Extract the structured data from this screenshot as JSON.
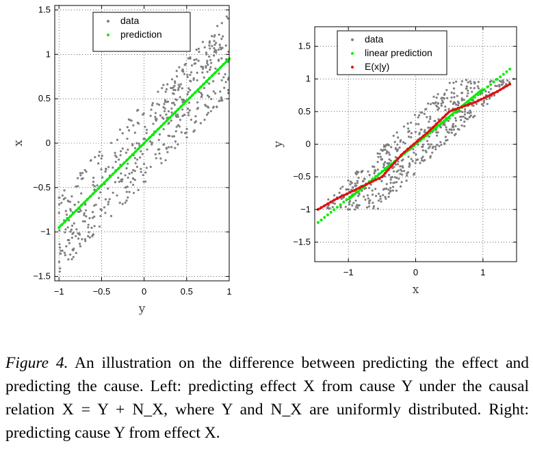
{
  "colors": {
    "data": "#7f7f7f",
    "linear": "#00ee00",
    "exy": "#dd1111",
    "frame": "#000000"
  },
  "chart_data": [
    {
      "type": "scatter",
      "title": "",
      "xlabel": "y",
      "ylabel": "x",
      "xlim": [
        -1.05,
        1.0
      ],
      "ylim": [
        -1.55,
        1.55
      ],
      "xticks": [
        "−1",
        "−0.5",
        "0",
        "0.5",
        "1"
      ],
      "yticks": [
        "−1.5",
        "−1",
        "−0.5",
        "0",
        "0.5",
        "1",
        "1.5"
      ],
      "grid": true,
      "legend_position": "top-center",
      "legend": [
        "data",
        "prediction"
      ],
      "series": [
        {
          "name": "data",
          "kind": "scatter",
          "description_x_range": [
            -1,
            1
          ],
          "noise_range": [
            -0.5,
            0.5
          ]
        },
        {
          "name": "prediction",
          "kind": "line",
          "x": [
            -1,
            1
          ],
          "y": [
            -0.95,
            0.95
          ]
        }
      ]
    },
    {
      "type": "scatter",
      "title": "",
      "xlabel": "x",
      "ylabel": "y",
      "xlim": [
        -1.5,
        1.5
      ],
      "ylim": [
        -1.8,
        1.8
      ],
      "xticks": [
        "−1",
        "0",
        "1"
      ],
      "yticks": [
        "−1.5",
        "−1",
        "−0.5",
        "0",
        "0.5",
        "1",
        "1.5"
      ],
      "grid": true,
      "legend_position": "top-center",
      "legend": [
        "data",
        "linear prediction",
        "E(x|y)"
      ],
      "series": [
        {
          "name": "data",
          "kind": "scatter"
        },
        {
          "name": "linear prediction",
          "kind": "line",
          "x": [
            -1.45,
            1.4
          ],
          "y": [
            -1.2,
            1.15
          ]
        },
        {
          "name": "E(x|y)",
          "kind": "line",
          "x": [
            -1.45,
            -1.2,
            -0.9,
            -0.5,
            -0.2,
            0.2,
            0.5,
            0.9,
            1.2,
            1.4
          ],
          "y": [
            -1.0,
            -0.85,
            -0.7,
            -0.5,
            -0.15,
            0.2,
            0.5,
            0.65,
            0.8,
            0.92
          ]
        }
      ]
    }
  ],
  "caption": {
    "label": "Figure 4.",
    "text": " An illustration on the difference between predicting the effect and predicting the cause. Left: predicting effect X from cause Y under the causal relation X = Y + N_X, where Y and N_X are uniformly distributed. Right: predicting cause Y from effect X."
  }
}
